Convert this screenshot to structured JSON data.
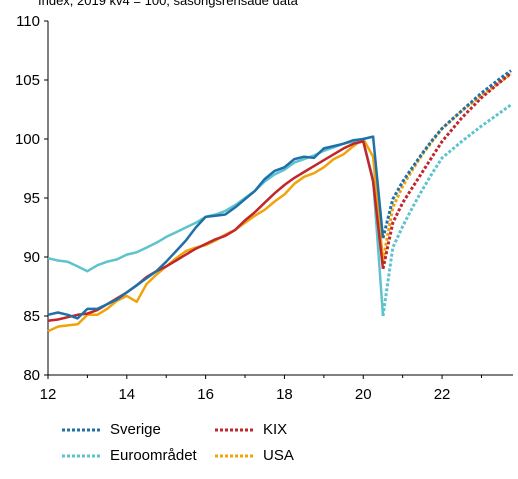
{
  "chart_data": {
    "type": "line",
    "subtitle": "Index, 2019 kv4 = 100, säsongsrensade data",
    "xlim": [
      12,
      23.8
    ],
    "ylim": [
      80,
      110
    ],
    "xticks": [
      "12",
      "14",
      "16",
      "18",
      "20",
      "22"
    ],
    "yticks": [
      "80",
      "85",
      "90",
      "95",
      "100",
      "105",
      "110"
    ],
    "legend_placement": "bottom",
    "series": [
      {
        "name": "Sverige",
        "color": "#1f6fa8",
        "outcome": [
          [
            12,
            85.1
          ],
          [
            12.25,
            85.3
          ],
          [
            12.5,
            85.1
          ],
          [
            12.75,
            84.8
          ],
          [
            13,
            85.6
          ],
          [
            13.25,
            85.6
          ],
          [
            13.5,
            86.0
          ],
          [
            13.75,
            86.4
          ],
          [
            14,
            87.0
          ],
          [
            14.25,
            87.6
          ],
          [
            14.5,
            88.2
          ],
          [
            14.75,
            88.8
          ],
          [
            15,
            89.6
          ],
          [
            15.25,
            90.5
          ],
          [
            15.5,
            91.4
          ],
          [
            15.75,
            92.5
          ],
          [
            16,
            93.4
          ],
          [
            16.25,
            93.5
          ],
          [
            16.5,
            93.6
          ],
          [
            16.75,
            94.2
          ],
          [
            17,
            94.9
          ],
          [
            17.25,
            95.6
          ],
          [
            17.5,
            96.6
          ],
          [
            17.75,
            97.3
          ],
          [
            18,
            97.6
          ],
          [
            18.25,
            98.3
          ],
          [
            18.5,
            98.5
          ],
          [
            18.75,
            98.4
          ],
          [
            19,
            99.2
          ],
          [
            19.25,
            99.4
          ],
          [
            19.5,
            99.6
          ],
          [
            19.75,
            99.9
          ],
          [
            20,
            100.0
          ],
          [
            20.25,
            100.2
          ],
          [
            20.5,
            91.6
          ]
        ],
        "forecast": [
          [
            20.5,
            91.6
          ],
          [
            20.75,
            94.9
          ],
          [
            21,
            96.4
          ],
          [
            21.25,
            97.6
          ],
          [
            21.5,
            98.8
          ],
          [
            21.75,
            99.9
          ],
          [
            22,
            100.9
          ],
          [
            22.5,
            102.4
          ],
          [
            23,
            103.9
          ],
          [
            23.5,
            105.2
          ],
          [
            23.75,
            105.8
          ]
        ]
      },
      {
        "name": "Euroområdet",
        "color": "#5ec3cc",
        "outcome": [
          [
            12,
            89.9
          ],
          [
            12.25,
            89.7
          ],
          [
            12.5,
            89.6
          ],
          [
            12.75,
            89.2
          ],
          [
            13,
            88.8
          ],
          [
            13.25,
            89.3
          ],
          [
            13.5,
            89.6
          ],
          [
            13.75,
            89.8
          ],
          [
            14,
            90.2
          ],
          [
            14.25,
            90.4
          ],
          [
            14.5,
            90.8
          ],
          [
            14.75,
            91.2
          ],
          [
            15,
            91.7
          ],
          [
            15.25,
            92.1
          ],
          [
            15.5,
            92.5
          ],
          [
            15.75,
            92.9
          ],
          [
            16,
            93.4
          ],
          [
            16.25,
            93.6
          ],
          [
            16.5,
            93.9
          ],
          [
            16.75,
            94.4
          ],
          [
            17,
            95.0
          ],
          [
            17.25,
            95.6
          ],
          [
            17.5,
            96.4
          ],
          [
            17.75,
            97.0
          ],
          [
            18,
            97.4
          ],
          [
            18.25,
            98.0
          ],
          [
            18.5,
            98.3
          ],
          [
            18.75,
            98.6
          ],
          [
            19,
            99.0
          ],
          [
            19.25,
            99.3
          ],
          [
            19.5,
            99.6
          ],
          [
            19.75,
            99.8
          ],
          [
            20,
            99.8
          ],
          [
            20.25,
            96.6
          ],
          [
            20.5,
            85.0
          ]
        ],
        "forecast": [
          [
            20.5,
            85.0
          ],
          [
            20.75,
            90.8
          ],
          [
            21,
            92.6
          ],
          [
            21.25,
            94.2
          ],
          [
            21.5,
            95.7
          ],
          [
            21.75,
            97.1
          ],
          [
            22,
            98.4
          ],
          [
            22.5,
            99.8
          ],
          [
            23,
            101.1
          ],
          [
            23.5,
            102.3
          ],
          [
            23.75,
            102.9
          ]
        ]
      },
      {
        "name": "KIX",
        "color": "#c0272d",
        "outcome": [
          [
            12,
            84.6
          ],
          [
            12.25,
            84.7
          ],
          [
            12.5,
            84.9
          ],
          [
            12.75,
            85.1
          ],
          [
            13,
            85.2
          ],
          [
            13.25,
            85.5
          ],
          [
            13.5,
            86.0
          ],
          [
            13.75,
            86.5
          ],
          [
            14,
            87.0
          ],
          [
            14.25,
            87.6
          ],
          [
            14.5,
            88.3
          ],
          [
            14.75,
            88.8
          ],
          [
            15,
            89.2
          ],
          [
            15.25,
            89.7
          ],
          [
            15.5,
            90.2
          ],
          [
            15.75,
            90.7
          ],
          [
            16,
            91.1
          ],
          [
            16.25,
            91.5
          ],
          [
            16.5,
            91.8
          ],
          [
            16.75,
            92.3
          ],
          [
            17,
            93.1
          ],
          [
            17.25,
            93.8
          ],
          [
            17.5,
            94.6
          ],
          [
            17.75,
            95.4
          ],
          [
            18,
            96.1
          ],
          [
            18.25,
            96.7
          ],
          [
            18.5,
            97.2
          ],
          [
            18.75,
            97.7
          ],
          [
            19,
            98.2
          ],
          [
            19.25,
            98.7
          ],
          [
            19.5,
            99.2
          ],
          [
            19.75,
            99.6
          ],
          [
            20,
            99.8
          ],
          [
            20.25,
            96.4
          ],
          [
            20.5,
            89.0
          ]
        ],
        "forecast": [
          [
            20.5,
            89.0
          ],
          [
            20.75,
            92.9
          ],
          [
            21,
            94.6
          ],
          [
            21.25,
            95.9
          ],
          [
            21.5,
            97.2
          ],
          [
            21.75,
            98.5
          ],
          [
            22,
            99.8
          ],
          [
            22.5,
            101.8
          ],
          [
            23,
            103.5
          ],
          [
            23.5,
            104.9
          ],
          [
            23.75,
            105.6
          ]
        ]
      },
      {
        "name": "USA",
        "color": "#f0a30a",
        "outcome": [
          [
            12,
            83.7
          ],
          [
            12.25,
            84.1
          ],
          [
            12.5,
            84.2
          ],
          [
            12.75,
            84.3
          ],
          [
            13,
            85.1
          ],
          [
            13.25,
            85.1
          ],
          [
            13.5,
            85.6
          ],
          [
            13.75,
            86.3
          ],
          [
            14,
            86.7
          ],
          [
            14.25,
            86.2
          ],
          [
            14.5,
            87.7
          ],
          [
            14.75,
            88.5
          ],
          [
            15,
            89.2
          ],
          [
            15.25,
            89.9
          ],
          [
            15.5,
            90.5
          ],
          [
            15.75,
            90.8
          ],
          [
            16,
            91.0
          ],
          [
            16.25,
            91.4
          ],
          [
            16.5,
            91.9
          ],
          [
            16.75,
            92.3
          ],
          [
            17,
            92.9
          ],
          [
            17.25,
            93.5
          ],
          [
            17.5,
            94.0
          ],
          [
            17.75,
            94.7
          ],
          [
            18,
            95.3
          ],
          [
            18.25,
            96.2
          ],
          [
            18.5,
            96.8
          ],
          [
            18.75,
            97.1
          ],
          [
            19,
            97.6
          ],
          [
            19.25,
            98.3
          ],
          [
            19.5,
            98.7
          ],
          [
            19.75,
            99.4
          ],
          [
            20,
            100.0
          ],
          [
            20.25,
            98.5
          ],
          [
            20.5,
            89.7
          ]
        ],
        "forecast": [
          [
            20.5,
            89.7
          ],
          [
            20.75,
            94.2
          ],
          [
            21,
            96.0
          ],
          [
            21.25,
            97.4
          ],
          [
            21.5,
            98.7
          ],
          [
            21.75,
            99.8
          ],
          [
            22,
            100.9
          ],
          [
            22.5,
            102.4
          ],
          [
            23,
            103.7
          ],
          [
            23.5,
            104.9
          ],
          [
            23.75,
            105.5
          ]
        ]
      }
    ]
  }
}
